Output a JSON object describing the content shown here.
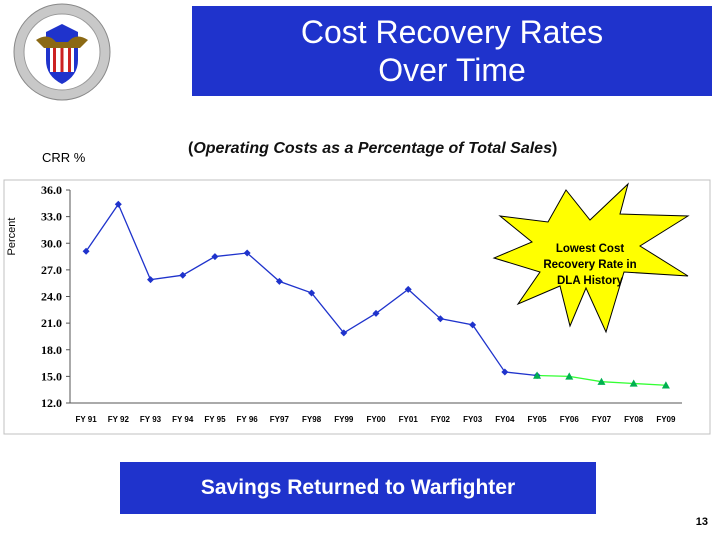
{
  "title": {
    "line1": "Cost Recovery Rates",
    "line2": "Over Time"
  },
  "crr_label": "CRR %",
  "subtitle": {
    "open": "(",
    "text": "Operating Costs as a Percentage of Total Sales",
    "close": ")"
  },
  "callout": {
    "line1": "Lowest Cost",
    "line2": "Recovery Rate in",
    "line3": "DLA History",
    "fill": "#ffff00"
  },
  "footer_text": "Savings Returned to Warfighter",
  "page_number": "13",
  "colors": {
    "title_bg": "#1f33cc",
    "actual_series": "#1f33cc",
    "projected_series": "#33ff33",
    "marker_projected": "#00b050"
  },
  "chart_data": {
    "type": "line",
    "ylabel": "Percent",
    "xlabel": "",
    "ylim": [
      12.0,
      36.0
    ],
    "yticks": [
      "12.0",
      "15.0",
      "18.0",
      "21.0",
      "24.0",
      "27.0",
      "30.0",
      "33.0",
      "36.0"
    ],
    "categories": [
      "FY 91",
      "FY 92",
      "FY 93",
      "FY 94",
      "FY 95",
      "FY 96",
      "FY97",
      "FY98",
      "FY99",
      "FY00",
      "FY01",
      "FY02",
      "FY03",
      "FY04",
      "FY05",
      "FY06",
      "FY07",
      "FY08",
      "FY09"
    ],
    "series": [
      {
        "marker": "diamond",
        "values": [
          29.1,
          34.4,
          25.9,
          26.4,
          28.5,
          28.9,
          25.7,
          24.4,
          19.9,
          22.1,
          24.8,
          21.5,
          20.8,
          15.5,
          15.1,
          null,
          null,
          null,
          null
        ]
      },
      {
        "marker": "triangle",
        "values": [
          null,
          null,
          null,
          null,
          null,
          null,
          null,
          null,
          null,
          null,
          null,
          null,
          null,
          null,
          15.1,
          15.0,
          14.4,
          14.2,
          14.0
        ]
      }
    ],
    "grid": false,
    "legend": "none"
  }
}
